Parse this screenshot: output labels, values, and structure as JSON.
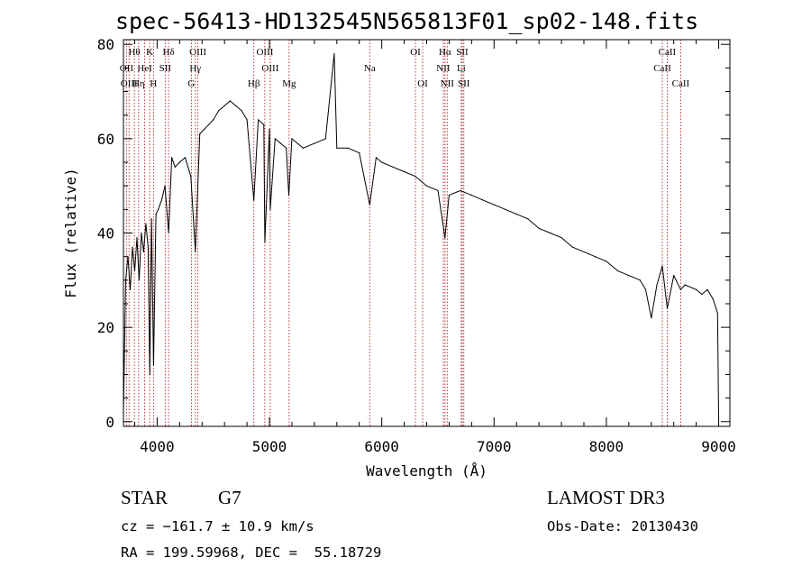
{
  "title": "spec-56413-HD132545N565813F01_sp02-148.fits",
  "colors": {
    "spectrum": "#000000",
    "line_marker": "#b22222",
    "axes": "#000000"
  },
  "chart_data": {
    "type": "line",
    "title": "spec-56413-HD132545N565813F01_sp02-148.fits",
    "xlabel": "Wavelength (Å)",
    "ylabel": "Flux (relative)",
    "xlim": [
      3700,
      9100
    ],
    "ylim": [
      -1,
      81
    ],
    "xticks": [
      4000,
      5000,
      6000,
      7000,
      8000,
      9000
    ],
    "yticks": [
      0,
      20,
      40,
      60,
      80
    ],
    "grid": false,
    "series": [
      {
        "name": "spectrum",
        "x": [
          3700,
          3720,
          3740,
          3760,
          3780,
          3800,
          3820,
          3840,
          3860,
          3880,
          3900,
          3920,
          3934,
          3950,
          3968,
          3990,
          4010,
          4040,
          4070,
          4102,
          4130,
          4160,
          4200,
          4250,
          4300,
          4340,
          4380,
          4420,
          4460,
          4500,
          4550,
          4600,
          4650,
          4700,
          4750,
          4800,
          4861,
          4900,
          4950,
          4959,
          5000,
          5007,
          5050,
          5100,
          5150,
          5172,
          5200,
          5300,
          5400,
          5500,
          5577,
          5600,
          5700,
          5800,
          5893,
          5950,
          6000,
          6100,
          6200,
          6300,
          6400,
          6500,
          6563,
          6600,
          6700,
          6800,
          6900,
          7000,
          7100,
          7200,
          7300,
          7400,
          7500,
          7600,
          7700,
          7800,
          7900,
          8000,
          8100,
          8200,
          8300,
          8350,
          8400,
          8450,
          8498,
          8542,
          8600,
          8662,
          8700,
          8800,
          8850,
          8900,
          8950,
          8990,
          9000
        ],
        "y": [
          2,
          30,
          35,
          28,
          37,
          32,
          39,
          30,
          40,
          36,
          42,
          37,
          10,
          43,
          12,
          44,
          45,
          47,
          50,
          40,
          56,
          54,
          55,
          56,
          52,
          36,
          61,
          62,
          63,
          64,
          66,
          67,
          68,
          67,
          66,
          64,
          47,
          64,
          63,
          38,
          62,
          45,
          60,
          59,
          58,
          48,
          60,
          58,
          59,
          60,
          78,
          58,
          58,
          57,
          46,
          56,
          55,
          54,
          53,
          52,
          50,
          49,
          39,
          48,
          49,
          48,
          47,
          46,
          45,
          44,
          43,
          41,
          40,
          39,
          37,
          36,
          35,
          34,
          32,
          31,
          30,
          28,
          22,
          29,
          33,
          24,
          31,
          28,
          29,
          28,
          27,
          28,
          26,
          23,
          1
        ]
      }
    ],
    "line_markers": [
      {
        "label": "Hθ",
        "x": 3797,
        "row": 1
      },
      {
        "label": "K",
        "x": 3934,
        "row": 1
      },
      {
        "label": "Hδ",
        "x": 4102,
        "row": 1
      },
      {
        "label": "OIII",
        "x": 4363,
        "row": 1
      },
      {
        "label": "OIII",
        "x": 4959,
        "row": 1
      },
      {
        "label": "OI",
        "x": 6300,
        "row": 1
      },
      {
        "label": "Hα",
        "x": 6563,
        "row": 1
      },
      {
        "label": "SII",
        "x": 6717,
        "row": 1
      },
      {
        "label": "CaII",
        "x": 8542,
        "row": 1
      },
      {
        "label": "OII",
        "x": 3727,
        "row": 2
      },
      {
        "label": "HeI",
        "x": 3889,
        "row": 2
      },
      {
        "label": "SII",
        "x": 4072,
        "row": 2
      },
      {
        "label": "Hγ",
        "x": 4340,
        "row": 2
      },
      {
        "label": "OIII",
        "x": 5007,
        "row": 2
      },
      {
        "label": "Na",
        "x": 5893,
        "row": 2
      },
      {
        "label": "NII",
        "x": 6548,
        "row": 2
      },
      {
        "label": "Li",
        "x": 6708,
        "row": 2
      },
      {
        "label": "CaII",
        "x": 8498,
        "row": 2
      },
      {
        "label": "OIII",
        "x": 3750,
        "row": 3
      },
      {
        "label": "Hη",
        "x": 3835,
        "row": 3
      },
      {
        "label": "H",
        "x": 3968,
        "row": 3
      },
      {
        "label": "G",
        "x": 4305,
        "row": 3
      },
      {
        "label": "Hβ",
        "x": 4861,
        "row": 3
      },
      {
        "label": "Mg",
        "x": 5175,
        "row": 3
      },
      {
        "label": "OI",
        "x": 6364,
        "row": 3
      },
      {
        "label": "NII",
        "x": 6583,
        "row": 3
      },
      {
        "label": "SII",
        "x": 6731,
        "row": 3
      },
      {
        "label": "CaII",
        "x": 8662,
        "row": 3
      }
    ]
  },
  "footer": {
    "object_class": "STAR",
    "subclass": "G7",
    "survey": "LAMOST DR3",
    "velocity": "cz = −161.7 ± 10.9 km/s",
    "obs_date": "Obs-Date: 20130430",
    "coords": "RA = 199.59968, DEC =  55.18729"
  }
}
